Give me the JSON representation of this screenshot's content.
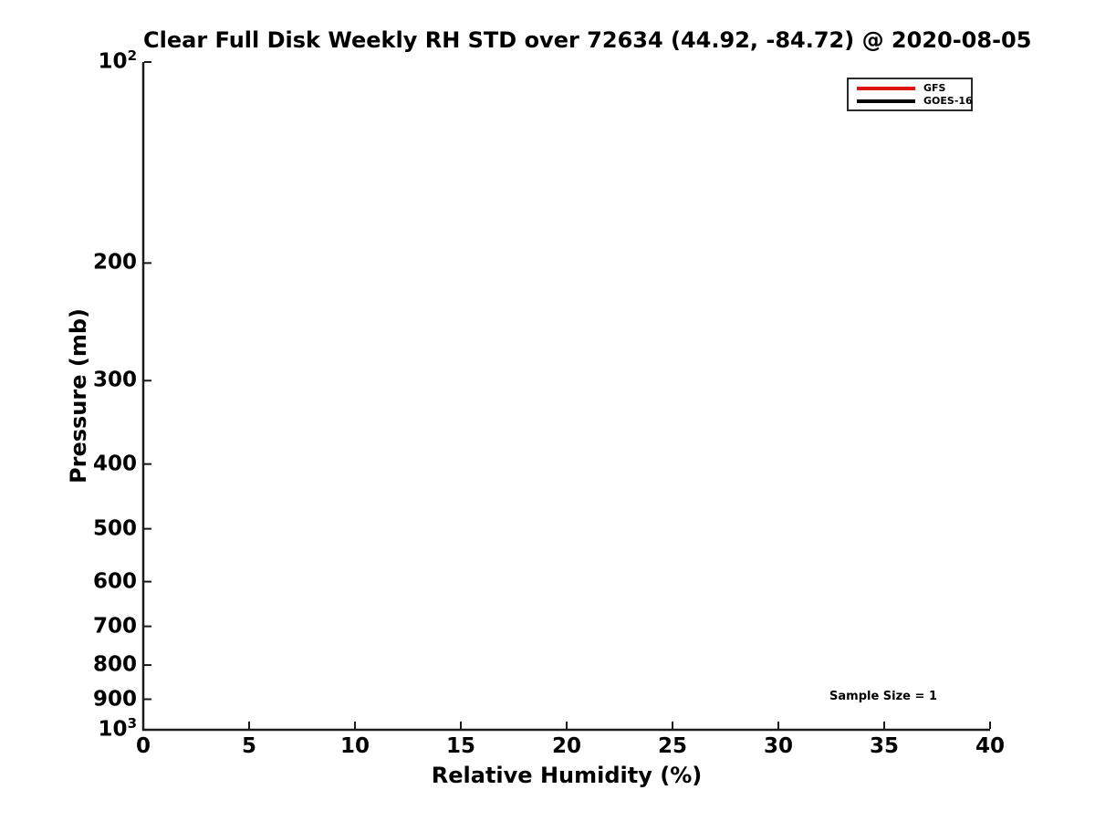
{
  "figure": {
    "background": "#ffffff",
    "text_color": "#000000",
    "axis_color": "#1a1a1a"
  },
  "chart_data": {
    "type": "line",
    "title": "Clear Full Disk Weekly RH STD over 72634 (44.92, -84.72) @ 2020-08-05",
    "xlabel": "Relative Humidity (%)",
    "ylabel": "Pressure (mb)",
    "xlim": [
      0,
      40
    ],
    "ylim": [
      100,
      1000
    ],
    "y_scale": "log10",
    "y_direction": "increasing-downward",
    "grid": false,
    "x_ticks": [
      {
        "value": 0,
        "display": "0"
      },
      {
        "value": 5,
        "display": "5"
      },
      {
        "value": 10,
        "display": "10"
      },
      {
        "value": 15,
        "display": "15"
      },
      {
        "value": 20,
        "display": "20"
      },
      {
        "value": 25,
        "display": "25"
      },
      {
        "value": 30,
        "display": "30"
      },
      {
        "value": 35,
        "display": "35"
      },
      {
        "value": 40,
        "display": "40"
      }
    ],
    "y_ticks": [
      {
        "value": 100,
        "display": "10^2"
      },
      {
        "value": 200,
        "display": "200"
      },
      {
        "value": 300,
        "display": "300"
      },
      {
        "value": 400,
        "display": "400"
      },
      {
        "value": 500,
        "display": "500"
      },
      {
        "value": 600,
        "display": "600"
      },
      {
        "value": 700,
        "display": "700"
      },
      {
        "value": 800,
        "display": "800"
      },
      {
        "value": 900,
        "display": "900"
      },
      {
        "value": 1000,
        "display": "10^3"
      }
    ],
    "legend": {
      "position": "top-right",
      "entries": [
        {
          "name": "GFS",
          "color": "#dd1414"
        },
        {
          "name": "GOES-16",
          "color": "#000000"
        }
      ]
    },
    "series": [
      {
        "name": "GFS",
        "color": "#dd1414",
        "points": []
      },
      {
        "name": "GOES-16",
        "color": "#000000",
        "points": []
      }
    ],
    "annotation": "Sample Size = 1"
  }
}
